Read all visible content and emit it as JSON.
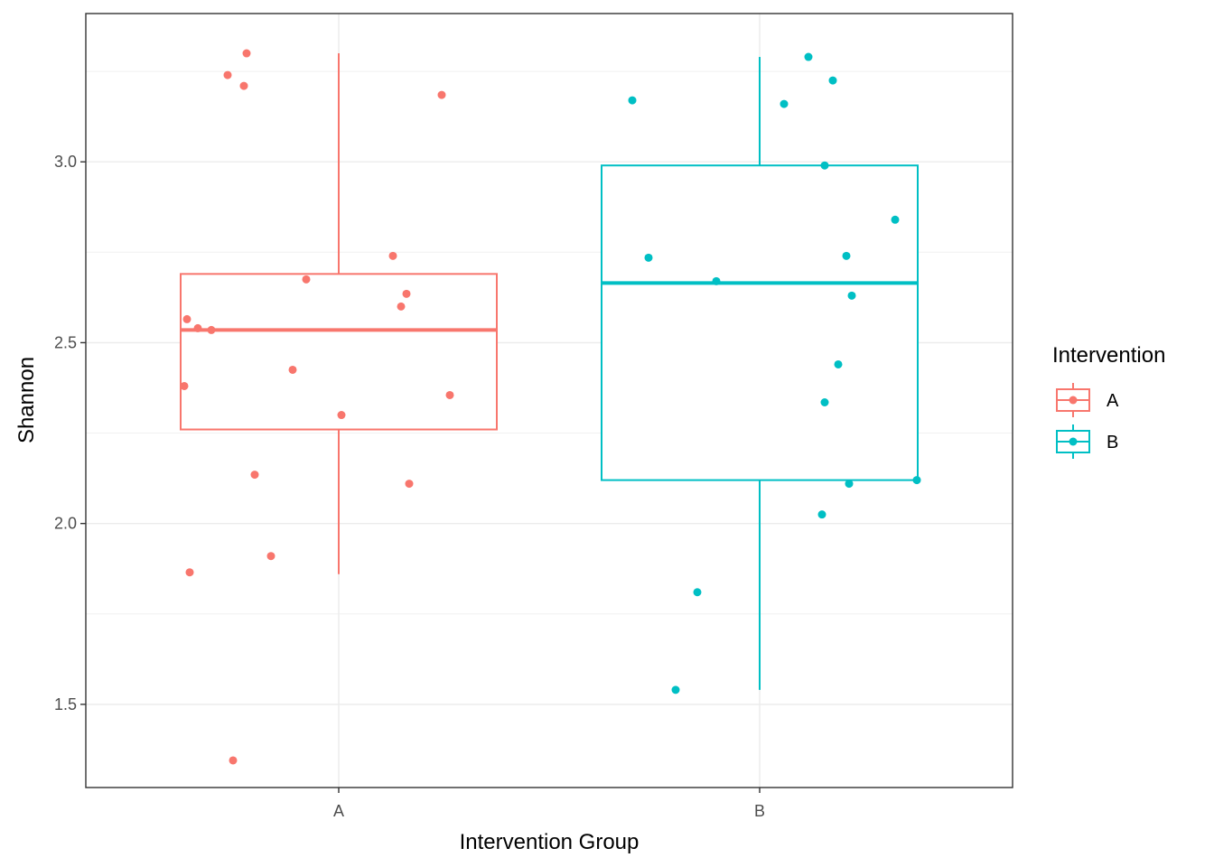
{
  "chart_data": {
    "type": "boxplot",
    "xlabel": "Intervention Group",
    "ylabel": "Shannon",
    "ylim": [
      1.27,
      3.41
    ],
    "y_ticks": [
      1.5,
      2.0,
      2.5,
      3.0
    ],
    "y_tick_labels": [
      "1.5",
      "2.0",
      "2.5",
      "3.0"
    ],
    "grid": true,
    "legend": {
      "title": "Intervention",
      "position": "right"
    },
    "categories": [
      "A",
      "B"
    ],
    "groups": [
      {
        "name": "A",
        "color": "#F8766D",
        "box": {
          "min": 1.86,
          "q1": 2.26,
          "median": 2.535,
          "q3": 2.69,
          "max": 3.3
        },
        "points": [
          {
            "jitter": -0.34,
            "y": 3.3
          },
          {
            "jitter": -0.41,
            "y": 3.24
          },
          {
            "jitter": -0.35,
            "y": 3.21
          },
          {
            "jitter": 0.38,
            "y": 3.185
          },
          {
            "jitter": 0.2,
            "y": 2.74
          },
          {
            "jitter": -0.12,
            "y": 2.675
          },
          {
            "jitter": 0.25,
            "y": 2.635
          },
          {
            "jitter": 0.23,
            "y": 2.6
          },
          {
            "jitter": -0.56,
            "y": 2.565
          },
          {
            "jitter": -0.52,
            "y": 2.54
          },
          {
            "jitter": -0.47,
            "y": 2.535
          },
          {
            "jitter": -0.17,
            "y": 2.425
          },
          {
            "jitter": -0.57,
            "y": 2.38
          },
          {
            "jitter": 0.41,
            "y": 2.355
          },
          {
            "jitter": 0.01,
            "y": 2.3
          },
          {
            "jitter": -0.31,
            "y": 2.135
          },
          {
            "jitter": 0.26,
            "y": 2.11
          },
          {
            "jitter": -0.25,
            "y": 1.91
          },
          {
            "jitter": -0.55,
            "y": 1.865
          },
          {
            "jitter": -0.39,
            "y": 1.345
          }
        ]
      },
      {
        "name": "B",
        "color": "#00BFC4",
        "box": {
          "min": 1.54,
          "q1": 2.12,
          "median": 2.665,
          "q3": 2.99,
          "max": 3.29
        },
        "points": [
          {
            "jitter": 0.18,
            "y": 3.29
          },
          {
            "jitter": 0.27,
            "y": 3.225
          },
          {
            "jitter": -0.47,
            "y": 3.17
          },
          {
            "jitter": 0.09,
            "y": 3.16
          },
          {
            "jitter": 0.24,
            "y": 2.99
          },
          {
            "jitter": 0.5,
            "y": 2.84
          },
          {
            "jitter": -0.41,
            "y": 2.735
          },
          {
            "jitter": 0.32,
            "y": 2.74
          },
          {
            "jitter": -0.16,
            "y": 2.67
          },
          {
            "jitter": 0.34,
            "y": 2.63
          },
          {
            "jitter": 0.29,
            "y": 2.44
          },
          {
            "jitter": 0.24,
            "y": 2.335
          },
          {
            "jitter": 0.58,
            "y": 2.12
          },
          {
            "jitter": 0.33,
            "y": 2.11
          },
          {
            "jitter": 0.23,
            "y": 2.025
          },
          {
            "jitter": -0.23,
            "y": 1.81
          },
          {
            "jitter": -0.31,
            "y": 1.54
          }
        ]
      }
    ]
  }
}
